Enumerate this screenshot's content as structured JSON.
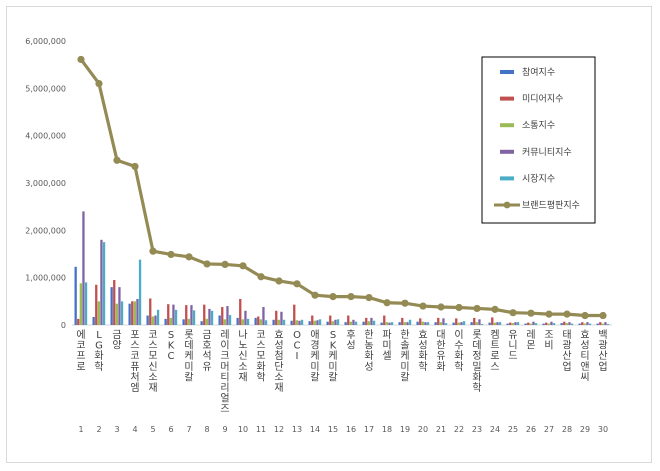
{
  "chart_data": {
    "type": "bar",
    "ylim": [
      0,
      6000000
    ],
    "yticks": [
      "0",
      "1,000,000",
      "2,000,000",
      "3,000,000",
      "4,000,000",
      "5,000,000",
      "6,000,000"
    ],
    "yticks_values": [
      0,
      1000000,
      2000000,
      3000000,
      4000000,
      5000000,
      6000000
    ],
    "categories": [
      "에코프로",
      "LG화학",
      "금양",
      "포스코퓨처엠",
      "코스모신소재",
      "SKC",
      "롯데케미칼",
      "금호석유",
      "레이크머티리얼즈",
      "나노신소재",
      "코스모화학",
      "효성첨단소재",
      "OCI",
      "애경케미칼",
      "SK케미칼",
      "후성",
      "한농화성",
      "파미셀",
      "한솔케미칼",
      "효성화학",
      "대한유화",
      "이수화학",
      "롯데정밀화학",
      "켐트로스",
      "유니드",
      "레몬",
      "조비",
      "태광산업",
      "효성티앤씨",
      "백광산업"
    ],
    "ranks": [
      "1",
      "2",
      "3",
      "4",
      "5",
      "6",
      "7",
      "8",
      "9",
      "10",
      "11",
      "12",
      "13",
      "14",
      "15",
      "16",
      "17",
      "18",
      "19",
      "20",
      "21",
      "22",
      "23",
      "24",
      "25",
      "26",
      "27",
      "28",
      "29",
      "30"
    ],
    "series": [
      {
        "name": "참여지수",
        "kind": "bar",
        "color": "#4472c4",
        "values": [
          1230000,
          170000,
          800000,
          450000,
          200000,
          130000,
          120000,
          80000,
          200000,
          150000,
          150000,
          110000,
          90000,
          80000,
          70000,
          60000,
          70000,
          50000,
          60000,
          70000,
          60000,
          50000,
          60000,
          50000,
          30000,
          30000,
          30000,
          40000,
          30000,
          30000
        ]
      },
      {
        "name": "미디어지수",
        "kind": "bar",
        "color": "#c0504d",
        "values": [
          130000,
          850000,
          950000,
          500000,
          560000,
          440000,
          420000,
          430000,
          380000,
          550000,
          180000,
          300000,
          430000,
          200000,
          200000,
          200000,
          150000,
          200000,
          150000,
          140000,
          150000,
          140000,
          150000,
          160000,
          50000,
          50000,
          50000,
          70000,
          60000,
          60000
        ]
      },
      {
        "name": "소통지수",
        "kind": "bar",
        "color": "#9bbb59",
        "values": [
          880000,
          500000,
          450000,
          500000,
          180000,
          150000,
          130000,
          130000,
          120000,
          120000,
          120000,
          110000,
          100000,
          90000,
          80000,
          70000,
          80000,
          60000,
          60000,
          70000,
          60000,
          50000,
          60000,
          50000,
          40000,
          30000,
          30000,
          40000,
          30000,
          30000
        ]
      },
      {
        "name": "커뮤니티지수",
        "kind": "bar",
        "color": "#8064a2",
        "values": [
          2400000,
          1800000,
          800000,
          550000,
          200000,
          430000,
          420000,
          340000,
          400000,
          300000,
          380000,
          280000,
          90000,
          100000,
          110000,
          110000,
          150000,
          50000,
          60000,
          60000,
          140000,
          60000,
          120000,
          60000,
          60000,
          70000,
          70000,
          60000,
          60000,
          60000
        ]
      },
      {
        "name": "시장지수",
        "kind": "bar",
        "color": "#4bacc6",
        "values": [
          900000,
          1750000,
          500000,
          1380000,
          320000,
          320000,
          310000,
          300000,
          210000,
          130000,
          100000,
          110000,
          110000,
          120000,
          120000,
          70000,
          90000,
          60000,
          110000,
          60000,
          40000,
          80000,
          20000,
          60000,
          60000,
          40000,
          40000,
          30000,
          30000,
          20000
        ]
      },
      {
        "name": "브랜드평판지수",
        "kind": "line",
        "color": "#948a54",
        "values": [
          5610000,
          5100000,
          3480000,
          3350000,
          1560000,
          1490000,
          1440000,
          1290000,
          1280000,
          1250000,
          1020000,
          930000,
          870000,
          630000,
          600000,
          600000,
          580000,
          470000,
          460000,
          400000,
          380000,
          370000,
          350000,
          330000,
          260000,
          250000,
          230000,
          230000,
          200000,
          200000
        ]
      }
    ],
    "legend_position": "top-right",
    "grid": false
  }
}
